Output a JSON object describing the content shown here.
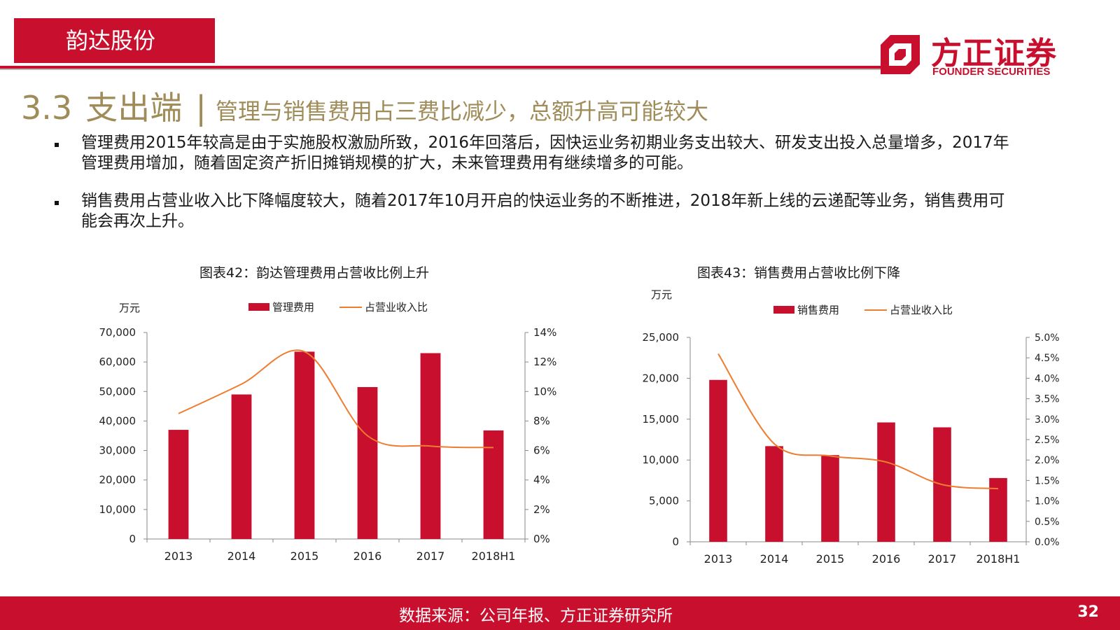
{
  "header": {
    "company_tag": "韵达股份",
    "logo_cn": "方正证券",
    "logo_en": "FOUNDER SECURITIES"
  },
  "title": {
    "number": "3.3",
    "main": "支出端",
    "separator": "|",
    "subtitle": "管理与销售费用占三费比减少，总额升高可能较大"
  },
  "bullets": [
    "管理费用2015年较高是由于实施股权激励所致，2016年回落后，因快运业务初期业务支出较大、研发支出投入总量增多，2017年管理费用增加，随着固定资产折旧摊销规模的扩大，未来管理费用有继续增多的可能。",
    "销售费用占营业收入比下降幅度较大，随着2017年10月开启的快运业务的不断推进，2018年新上线的云递配等业务，销售费用可能会再次上升。"
  ],
  "colors": {
    "brand": "#c8102e",
    "line": "#ed7d31",
    "title_gold": "#a08c59"
  },
  "chart_data": [
    {
      "type": "bar",
      "title": "图表42：韵达管理费用占营收比例上升",
      "categories": [
        "2013",
        "2014",
        "2015",
        "2016",
        "2017",
        "2018H1"
      ],
      "ylabel": "万元",
      "ylim": [
        0,
        70000
      ],
      "y_ticks": [
        "0",
        "10,000",
        "20,000",
        "30,000",
        "40,000",
        "50,000",
        "60,000",
        "70,000"
      ],
      "y2lim": [
        0,
        14
      ],
      "y2_ticks": [
        "0%",
        "2%",
        "4%",
        "6%",
        "8%",
        "10%",
        "12%",
        "14%"
      ],
      "legend_position": "top",
      "series": [
        {
          "name": "管理费用",
          "kind": "bar",
          "color": "#c8102e",
          "values": [
            37000,
            49000,
            63500,
            51500,
            63000,
            36800
          ]
        },
        {
          "name": "占营业收入比",
          "kind": "line",
          "axis": "right",
          "color": "#ed7d31",
          "values": [
            8.5,
            10.5,
            12.7,
            7.0,
            6.3,
            6.2
          ]
        }
      ],
      "grid": false
    },
    {
      "type": "bar",
      "title": "图表43：销售费用占营收比例下降",
      "categories": [
        "2013",
        "2014",
        "2015",
        "2016",
        "2017",
        "2018H1"
      ],
      "ylabel": "万元",
      "ylim": [
        0,
        25000
      ],
      "y_ticks": [
        "0",
        "5,000",
        "10,000",
        "15,000",
        "20,000",
        "25,000"
      ],
      "y2lim": [
        0,
        5
      ],
      "y2_ticks": [
        "0.0%",
        "0.5%",
        "1.0%",
        "1.5%",
        "2.0%",
        "2.5%",
        "3.0%",
        "3.5%",
        "4.0%",
        "4.5%",
        "5.0%"
      ],
      "legend_position": "top",
      "series": [
        {
          "name": "销售费用",
          "kind": "bar",
          "color": "#c8102e",
          "values": [
            19800,
            11700,
            10600,
            14600,
            14000,
            7800
          ]
        },
        {
          "name": "占营业收入比",
          "kind": "line",
          "axis": "right",
          "color": "#ed7d31",
          "values": [
            4.6,
            2.4,
            2.1,
            1.95,
            1.4,
            1.3
          ]
        }
      ],
      "grid": false
    }
  ],
  "footer": {
    "source": "数据来源：公司年报、方正证券研究所",
    "page": "32"
  }
}
